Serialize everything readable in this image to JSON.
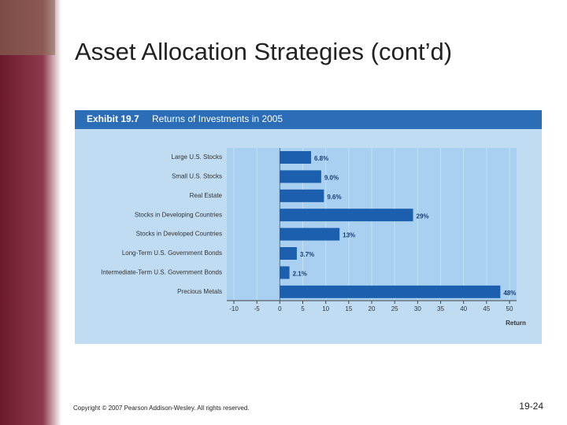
{
  "slide": {
    "title": "Asset Allocation Strategies (cont’d)",
    "footer": "Copyright © 2007 Pearson Addison-Wesley. All rights reserved.",
    "page_number": "19-24"
  },
  "chart_data": {
    "type": "hbar",
    "exhibit": "Exhibit 19.7",
    "title": "Returns of Investments in 2005",
    "categories": [
      "Large U.S. Stocks",
      "Small U.S. Stocks",
      "Real Estate",
      "Stocks in Developing Countries",
      "Stocks in Developed Countries",
      "Long-Term U.S. Government Bonds",
      "Intermediate-Term U.S. Government Bonds",
      "Precious Metals"
    ],
    "values": [
      6.8,
      9.0,
      9.6,
      29,
      13,
      3.7,
      2.1,
      48
    ],
    "value_labels": [
      "6.8%",
      "9.0%",
      "9.6%",
      "29%",
      "13%",
      "3.7%",
      "2.1%",
      "48%"
    ],
    "color": "#1b5fae",
    "xlim": [
      -10,
      50
    ],
    "xticks": [
      -10,
      -5,
      0,
      5,
      10,
      15,
      20,
      25,
      30,
      35,
      40,
      45,
      50
    ],
    "xlabel": "Return",
    "grid": true
  }
}
